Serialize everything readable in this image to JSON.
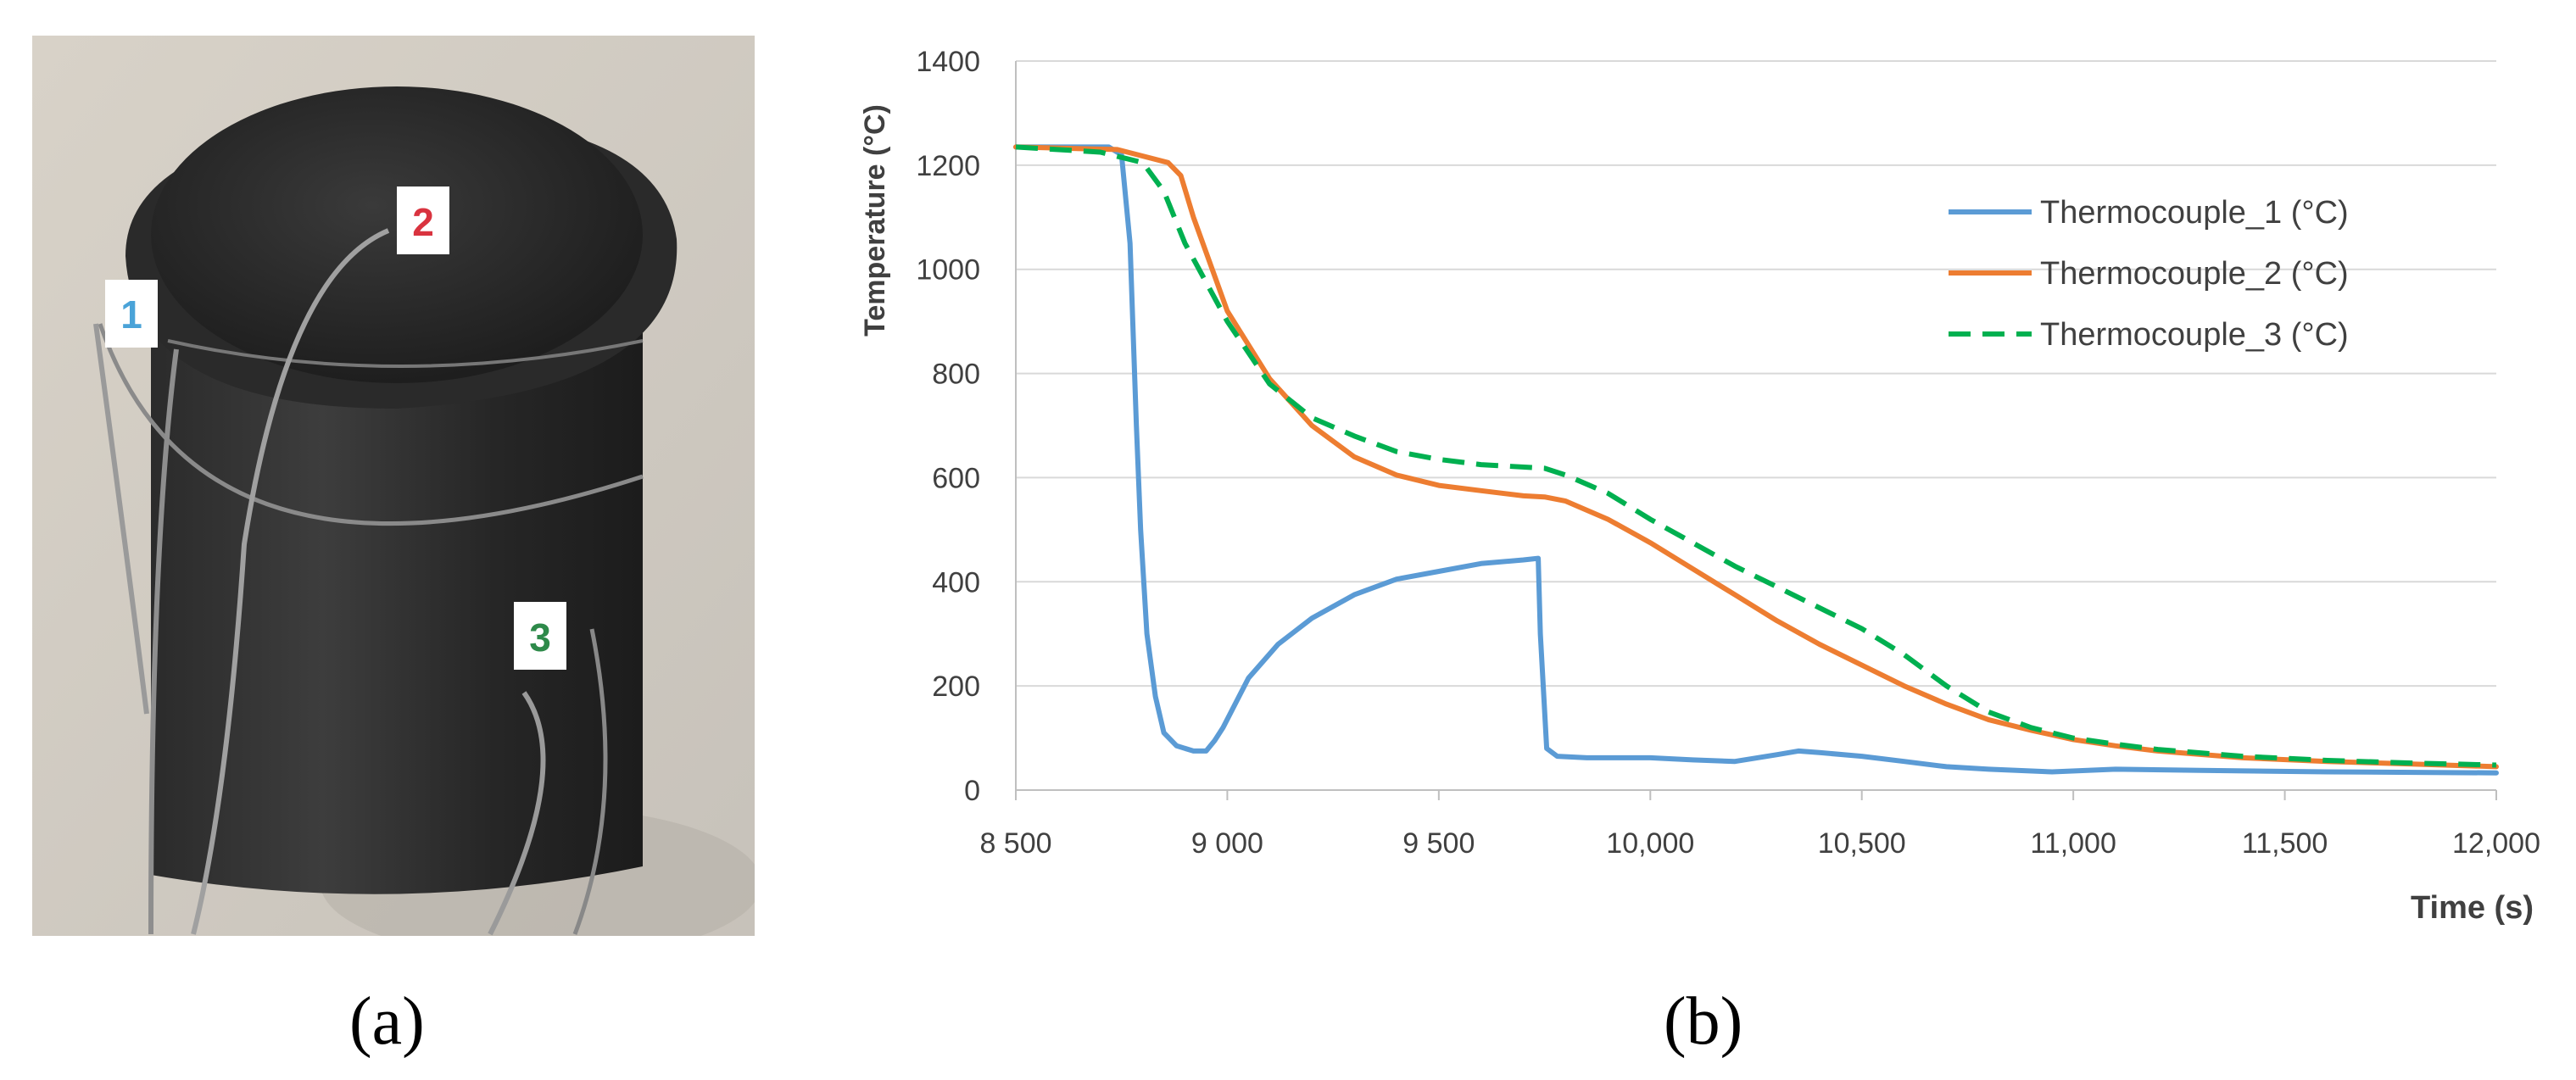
{
  "panels": {
    "a": {
      "label": "(a)",
      "markers": [
        "1",
        "2",
        "3"
      ],
      "marker_colors": [
        "#4aa3d8",
        "#d9333f",
        "#2e8a4a"
      ]
    },
    "b": {
      "label": "(b)"
    }
  },
  "chart_data": {
    "type": "line",
    "xlabel": "Time (s)",
    "ylabel": "Temperature (°C)",
    "xlim": [
      8500,
      12000
    ],
    "ylim": [
      0,
      1400
    ],
    "x_ticks": [
      8500,
      9000,
      9500,
      10000,
      10500,
      11000,
      11500,
      12000
    ],
    "x_tick_labels": [
      "8 500",
      "9 000",
      "9 500",
      "10,000",
      "10,500",
      "11,000",
      "11,500",
      "12,000"
    ],
    "y_ticks": [
      0,
      200,
      400,
      600,
      800,
      1000,
      1200,
      1400
    ],
    "y_tick_labels": [
      "0",
      "200",
      "400",
      "600",
      "800",
      "1000",
      "1200",
      "1400"
    ],
    "grid": "horizontal",
    "legend_position": "top-right",
    "series": [
      {
        "name": "Thermocouple_1 (°C)",
        "color": "#5b9bd5",
        "style": "solid",
        "points": [
          [
            8500,
            1235
          ],
          [
            8720,
            1235
          ],
          [
            8750,
            1220
          ],
          [
            8770,
            1050
          ],
          [
            8785,
            700
          ],
          [
            8795,
            500
          ],
          [
            8810,
            300
          ],
          [
            8830,
            180
          ],
          [
            8850,
            110
          ],
          [
            8880,
            85
          ],
          [
            8920,
            75
          ],
          [
            8950,
            75
          ],
          [
            8970,
            95
          ],
          [
            8990,
            120
          ],
          [
            9050,
            215
          ],
          [
            9120,
            280
          ],
          [
            9200,
            330
          ],
          [
            9300,
            375
          ],
          [
            9400,
            405
          ],
          [
            9500,
            420
          ],
          [
            9600,
            435
          ],
          [
            9700,
            442
          ],
          [
            9735,
            445
          ],
          [
            9740,
            300
          ],
          [
            9755,
            80
          ],
          [
            9780,
            65
          ],
          [
            9850,
            62
          ],
          [
            10000,
            62
          ],
          [
            10050,
            60
          ],
          [
            10100,
            58
          ],
          [
            10200,
            55
          ],
          [
            10300,
            68
          ],
          [
            10350,
            75
          ],
          [
            10400,
            72
          ],
          [
            10500,
            65
          ],
          [
            10600,
            55
          ],
          [
            10700,
            45
          ],
          [
            10800,
            40
          ],
          [
            10950,
            35
          ],
          [
            11100,
            40
          ],
          [
            11300,
            38
          ],
          [
            11600,
            35
          ],
          [
            12000,
            33
          ]
        ]
      },
      {
        "name": "Thermocouple_2 (°C)",
        "color": "#ed7d31",
        "style": "solid",
        "points": [
          [
            8500,
            1235
          ],
          [
            8740,
            1230
          ],
          [
            8860,
            1205
          ],
          [
            8890,
            1180
          ],
          [
            8920,
            1100
          ],
          [
            9000,
            920
          ],
          [
            9100,
            790
          ],
          [
            9200,
            700
          ],
          [
            9300,
            640
          ],
          [
            9400,
            605
          ],
          [
            9500,
            585
          ],
          [
            9600,
            575
          ],
          [
            9700,
            565
          ],
          [
            9750,
            563
          ],
          [
            9800,
            555
          ],
          [
            9900,
            520
          ],
          [
            10000,
            475
          ],
          [
            10100,
            425
          ],
          [
            10200,
            375
          ],
          [
            10300,
            325
          ],
          [
            10400,
            280
          ],
          [
            10500,
            240
          ],
          [
            10600,
            200
          ],
          [
            10700,
            165
          ],
          [
            10800,
            135
          ],
          [
            10900,
            115
          ],
          [
            11000,
            97
          ],
          [
            11100,
            85
          ],
          [
            11200,
            75
          ],
          [
            11400,
            62
          ],
          [
            11600,
            55
          ],
          [
            11800,
            50
          ],
          [
            12000,
            45
          ]
        ]
      },
      {
        "name": "Thermocouple_3 (°C)",
        "color": "#00b050",
        "style": "dashed",
        "points": [
          [
            8500,
            1235
          ],
          [
            8700,
            1225
          ],
          [
            8800,
            1205
          ],
          [
            8850,
            1150
          ],
          [
            8900,
            1050
          ],
          [
            9000,
            900
          ],
          [
            9100,
            780
          ],
          [
            9200,
            715
          ],
          [
            9300,
            680
          ],
          [
            9400,
            650
          ],
          [
            9500,
            635
          ],
          [
            9600,
            625
          ],
          [
            9750,
            618
          ],
          [
            9800,
            605
          ],
          [
            9900,
            570
          ],
          [
            10000,
            520
          ],
          [
            10100,
            475
          ],
          [
            10200,
            430
          ],
          [
            10300,
            390
          ],
          [
            10400,
            350
          ],
          [
            10500,
            310
          ],
          [
            10600,
            260
          ],
          [
            10700,
            200
          ],
          [
            10800,
            150
          ],
          [
            10900,
            120
          ],
          [
            11000,
            100
          ],
          [
            11100,
            88
          ],
          [
            11200,
            78
          ],
          [
            11400,
            65
          ],
          [
            11600,
            57
          ],
          [
            11800,
            52
          ],
          [
            12000,
            48
          ]
        ]
      }
    ]
  }
}
